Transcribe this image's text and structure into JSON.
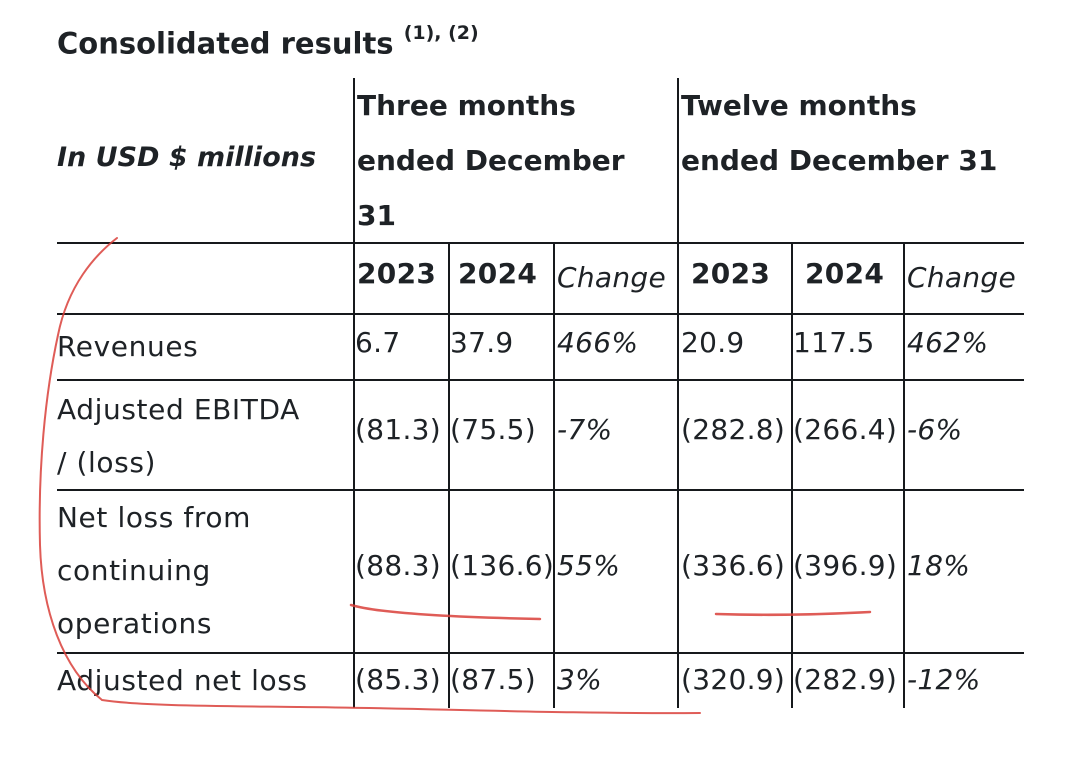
{
  "title": "Consolidated results",
  "title_superscript": "(1), (2)",
  "unit_label": "In USD $ millions",
  "group_headers": {
    "three": [
      "Three months",
      "ended December",
      "31"
    ],
    "twelve": [
      "Twelve months",
      "ended December 31"
    ]
  },
  "column_headers": [
    "2023",
    "2024",
    "Change",
    "2023",
    "2024",
    "Change"
  ],
  "rows": [
    {
      "label": [
        "Revenues"
      ],
      "values": [
        "6.7",
        "37.9",
        "466%",
        "20.9",
        "117.5",
        "462%"
      ]
    },
    {
      "label": [
        "Adjusted EBITDA",
        "/ (loss)"
      ],
      "values": [
        "(81.3)",
        "(75.5)",
        "-7%",
        "(282.8)",
        "(266.4)",
        "-6%"
      ]
    },
    {
      "label": [
        "Net loss from",
        "continuing",
        "operations"
      ],
      "values": [
        "(88.3)",
        "(136.6)",
        "55%",
        "(336.6)",
        "(396.9)",
        "18%"
      ]
    },
    {
      "label": [
        "Adjusted net loss"
      ],
      "values": [
        "(85.3)",
        "(87.5)",
        "3%",
        "(320.9)",
        "(282.9)",
        "-12%"
      ]
    }
  ],
  "annotation_color": "#d9403a"
}
